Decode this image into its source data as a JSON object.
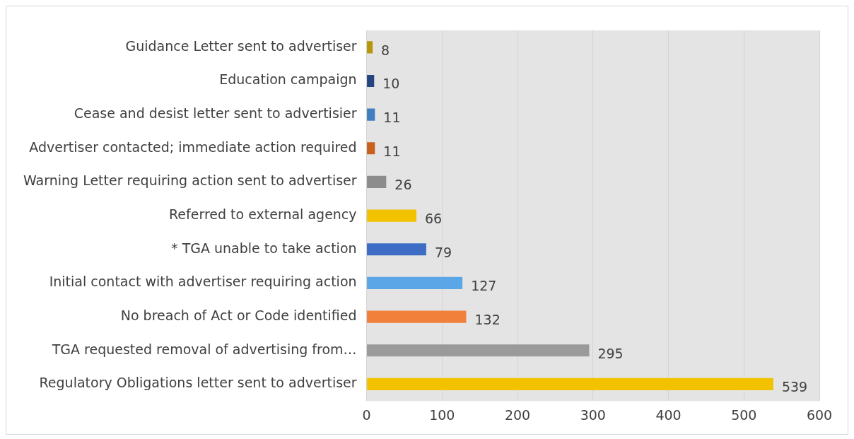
{
  "chart_data": {
    "type": "bar",
    "orientation": "horizontal",
    "categories": [
      "Guidance Letter sent to advertiser",
      "Education campaign",
      "Cease and desist letter sent to advertisier",
      "Advertiser contacted; immediate action required",
      "Warning Letter requiring action sent to advertiser",
      "Referred to external agency",
      "* TGA unable to take action",
      "Initial contact with advertiser requiring action",
      "No breach of Act or Code identified",
      "TGA requested removal of advertising from…",
      "Regulatory Obligations letter sent to advertiser"
    ],
    "values": [
      8,
      10,
      11,
      11,
      26,
      66,
      79,
      127,
      132,
      295,
      539
    ],
    "colors": [
      "#b8960a",
      "#24467e",
      "#3f7fc0",
      "#c9601e",
      "#8c8c8c",
      "#f2c200",
      "#3d6cc4",
      "#5aa6e6",
      "#f0803a",
      "#9a9a9a",
      "#f2c200"
    ],
    "xlim": [
      0,
      600
    ],
    "xticks": [
      0,
      100,
      200,
      300,
      400,
      500,
      600
    ],
    "grid": "x",
    "data_labels": true,
    "legend": false
  }
}
